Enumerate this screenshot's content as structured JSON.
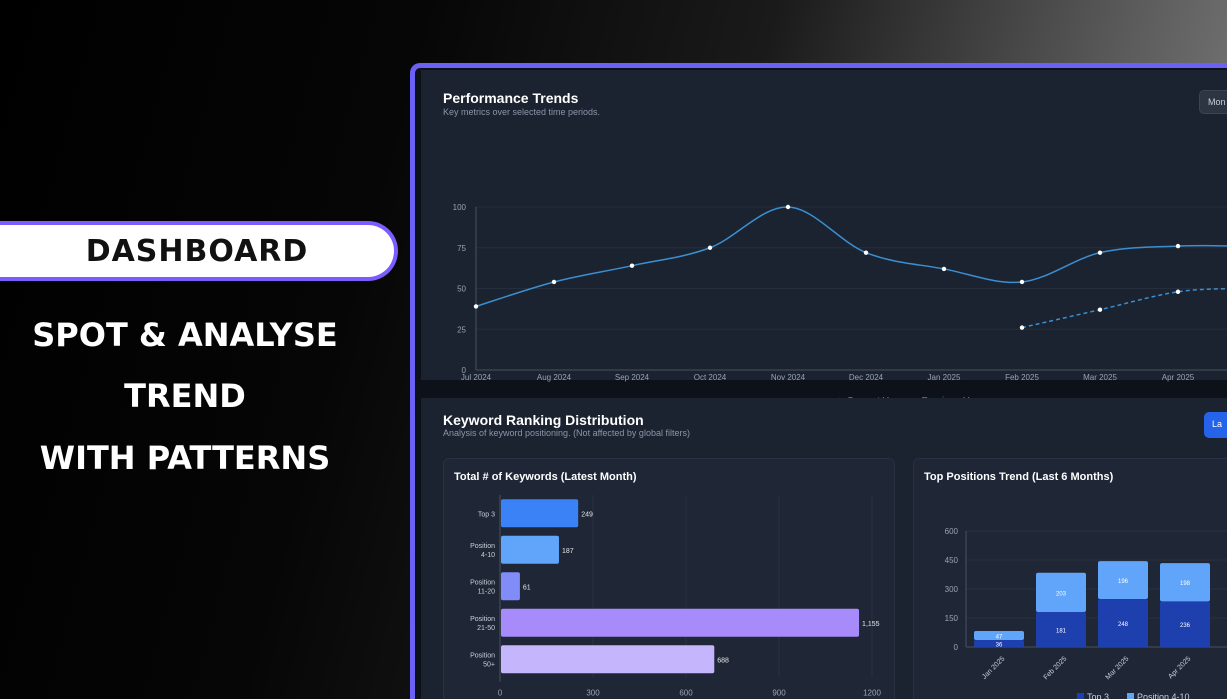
{
  "promo": {
    "badge": "DASHBOARD",
    "line1": "SPOT & ANALYSE",
    "line2": "TREND",
    "line3": "WITH PATTERNS"
  },
  "performance": {
    "title": "Performance Trends",
    "subtitle": "Key metrics over selected time periods.",
    "mode_button": "Mon"
  },
  "ranking": {
    "title": "Keyword Ranking Distribution",
    "subtitle": "Analysis of keyword positioning. (Not affected by global filters)",
    "button": "La",
    "left_title": "Total # of Keywords (Latest Month)",
    "right_title": "Top Positions Trend (Last 6 Months)"
  },
  "colors": {
    "line": "#3b8fd0",
    "top3": "#1e40af",
    "pos4_10": "#60a5fa",
    "bar_blue": "#3b82f6",
    "bar_light": "#60a5fa",
    "bar_indigo": "#818cf8",
    "bar_purple": "#a78bfa",
    "bar_lavender": "#c4b5fd"
  },
  "chart_data": [
    {
      "type": "line",
      "x": [
        "Jul 2024",
        "Aug 2024",
        "Sep 2024",
        "Oct 2024",
        "Nov 2024",
        "Dec 2024",
        "Jan 2025",
        "Feb 2025",
        "Mar 2025",
        "Apr 2025"
      ],
      "series": [
        {
          "name": "Current Year",
          "values": [
            39,
            54,
            64,
            75,
            100,
            72,
            62,
            54,
            72,
            76
          ]
        },
        {
          "name": "Previous Year",
          "values": [
            null,
            null,
            null,
            null,
            null,
            null,
            null,
            26,
            37,
            48
          ]
        }
      ],
      "ylim": [
        0,
        100
      ],
      "yticks": [
        0,
        25,
        50,
        75,
        100
      ]
    },
    {
      "type": "bar",
      "orientation": "horizontal",
      "categories": [
        "Top 3",
        "Position 4-10",
        "Position 11-20",
        "Position 21-50",
        "Position 50+"
      ],
      "category_lines": [
        [
          "Top 3"
        ],
        [
          "Position",
          "4-10"
        ],
        [
          "Position",
          "11-20"
        ],
        [
          "Position",
          "21-50"
        ],
        [
          "Position",
          "50+"
        ]
      ],
      "values": [
        249,
        187,
        61,
        1155,
        688
      ],
      "value_labels": [
        "249",
        "187",
        "61",
        "1,155",
        "688"
      ],
      "xlim": [
        0,
        1200
      ],
      "xticks": [
        0,
        300,
        600,
        900,
        1200
      ]
    },
    {
      "type": "bar",
      "stacked": true,
      "categories": [
        "Jan 2025",
        "Feb 2025",
        "Mar 2025",
        "Apr 2025"
      ],
      "series": [
        {
          "name": "Top 3",
          "values": [
            36,
            181,
            248,
            236
          ]
        },
        {
          "name": "Position 4-10",
          "values": [
            47,
            203,
            196,
            198
          ]
        }
      ],
      "ylim": [
        0,
        600
      ],
      "yticks": [
        0,
        150,
        300,
        450,
        600
      ]
    }
  ]
}
